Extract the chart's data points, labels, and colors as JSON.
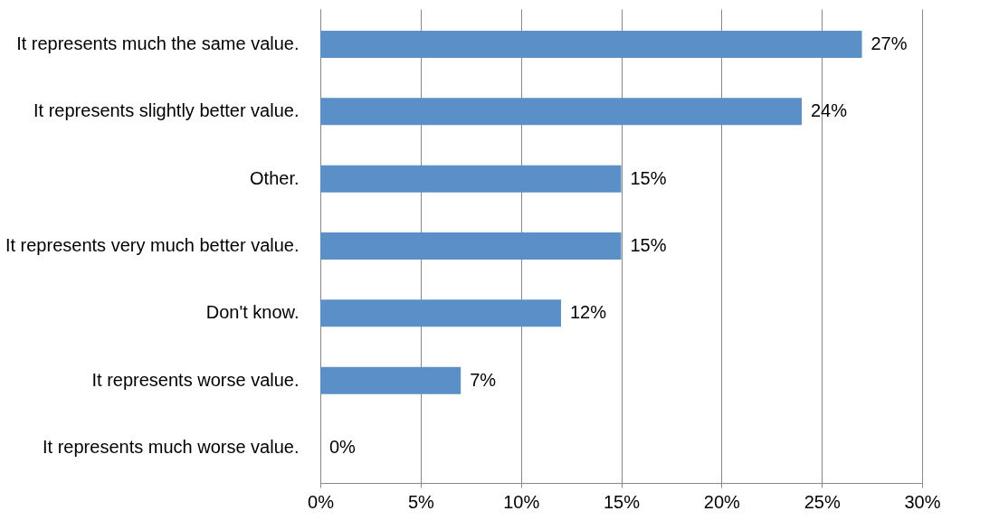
{
  "chart_data": {
    "type": "bar",
    "orientation": "horizontal",
    "categories": [
      "It represents much the same value.",
      "It represents slightly better value.",
      "Other.",
      "It represents very much better value.",
      "Don't know.",
      "It represents worse value.",
      "It represents much worse value."
    ],
    "values": [
      27,
      24,
      15,
      15,
      12,
      7,
      0
    ],
    "value_labels": [
      "27%",
      "24%",
      "15%",
      "15%",
      "12%",
      "7%",
      "0%"
    ],
    "color": "#5b8fc7",
    "xlim": [
      0,
      30
    ],
    "xticks": [
      {
        "value": 0,
        "label": "0%"
      },
      {
        "value": 5,
        "label": "5%"
      },
      {
        "value": 10,
        "label": "10%"
      },
      {
        "value": 15,
        "label": "15%"
      },
      {
        "value": 20,
        "label": "20%"
      },
      {
        "value": 25,
        "label": "25%"
      },
      {
        "value": 30,
        "label": "30%"
      }
    ],
    "grid": "x"
  }
}
